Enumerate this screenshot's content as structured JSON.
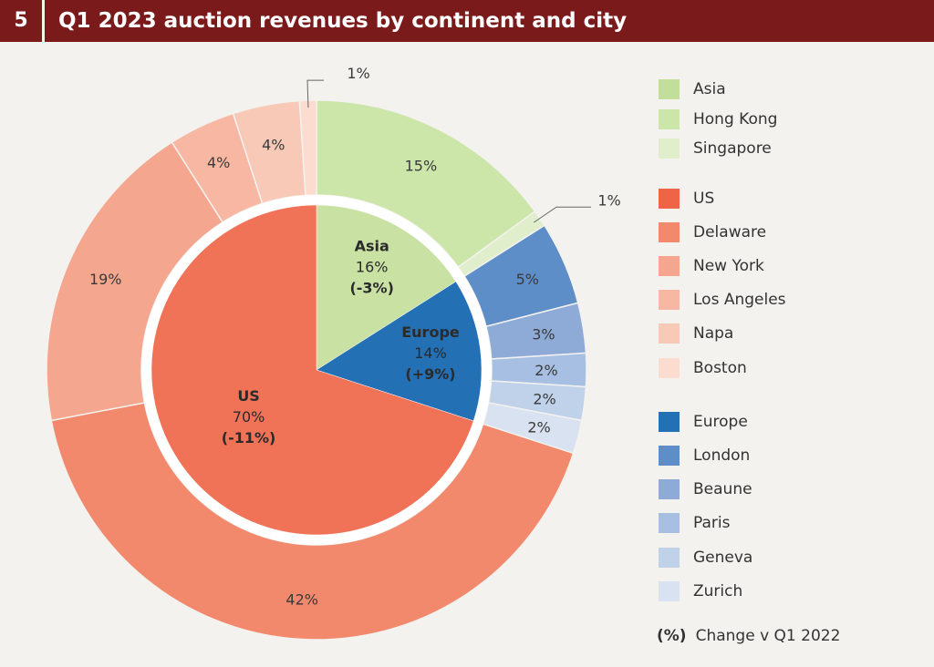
{
  "header": {
    "number": "5",
    "title": "Q1 2023 auction  revenues by continent and city"
  },
  "chart_data": {
    "type": "pie",
    "subtype": "nested-donut",
    "title": "Q1 2023 auction  revenues by continent and city",
    "inner_ring": [
      {
        "name": "Asia",
        "label": "Asia",
        "value": 16,
        "value_label": "16%",
        "change_label": "(-3%)",
        "color": "#c9e2a4"
      },
      {
        "name": "Europe",
        "label": "Europe",
        "value": 14,
        "value_label": "14%",
        "change_label": "(+9%)",
        "color": "#2470b5"
      },
      {
        "name": "US",
        "label": "US",
        "value": 70,
        "value_label": "70%",
        "change_label": "(-11%)",
        "color": "#f07257"
      }
    ],
    "outer_ring": [
      {
        "name": "Hong Kong",
        "value": 15,
        "value_label": "15%",
        "color": "#cce5a8",
        "callout": false
      },
      {
        "name": "Singapore",
        "value": 1,
        "value_label": "1%",
        "color": "#e0eecb",
        "callout": true
      },
      {
        "name": "London",
        "value": 5,
        "value_label": "5%",
        "color": "#5d8ec8",
        "callout": false
      },
      {
        "name": "Beaune",
        "value": 3,
        "value_label": "3%",
        "color": "#8eabd8",
        "callout": false
      },
      {
        "name": "Paris",
        "value": 2,
        "value_label": "2%",
        "color": "#a7bfe2",
        "callout": false
      },
      {
        "name": "Geneva",
        "value": 2,
        "value_label": "2%",
        "color": "#c0d1ea",
        "callout": false
      },
      {
        "name": "Zurich",
        "value": 2,
        "value_label": "2%",
        "color": "#d8e2f1",
        "callout": false
      },
      {
        "name": "Delaware",
        "value": 42,
        "value_label": "42%",
        "color": "#f2896c",
        "callout": false
      },
      {
        "name": "New York",
        "value": 19,
        "value_label": "19%",
        "color": "#f4a68e",
        "callout": false
      },
      {
        "name": "Los Angeles",
        "value": 4,
        "value_label": "4%",
        "color": "#f7b7a3",
        "callout": false
      },
      {
        "name": "Napa",
        "value": 4,
        "value_label": "4%",
        "color": "#f9c9b8",
        "callout": false
      },
      {
        "name": "Boston",
        "value": 1,
        "value_label": "1%",
        "color": "#fbdccf",
        "callout": true
      }
    ],
    "legend": {
      "position": "right",
      "groups": [
        [
          {
            "label": "Asia",
            "color": "#c1df9a"
          },
          {
            "label": "Hong Kong",
            "color": "#cce5a8"
          },
          {
            "label": "Singapore",
            "color": "#e0eecb"
          }
        ],
        [
          {
            "label": "US",
            "color": "#ef6447"
          },
          {
            "label": "Delaware",
            "color": "#f2896c"
          },
          {
            "label": "New York",
            "color": "#f4a68e"
          },
          {
            "label": "Los Angeles",
            "color": "#f7b7a3"
          },
          {
            "label": "Napa",
            "color": "#f9c9b8"
          },
          {
            "label": "Boston",
            "color": "#fbdccf"
          }
        ],
        [
          {
            "label": "Europe",
            "color": "#2470b5"
          },
          {
            "label": "London",
            "color": "#5d8ec8"
          },
          {
            "label": "Beaune",
            "color": "#8eabd8"
          },
          {
            "label": "Paris",
            "color": "#a7bfe2"
          },
          {
            "label": "Geneva",
            "color": "#c0d1ea"
          },
          {
            "label": "Zurich",
            "color": "#d8e2f1"
          }
        ]
      ]
    },
    "change_note": {
      "symbol": "(%)",
      "text": "Change v Q1 2022"
    }
  }
}
